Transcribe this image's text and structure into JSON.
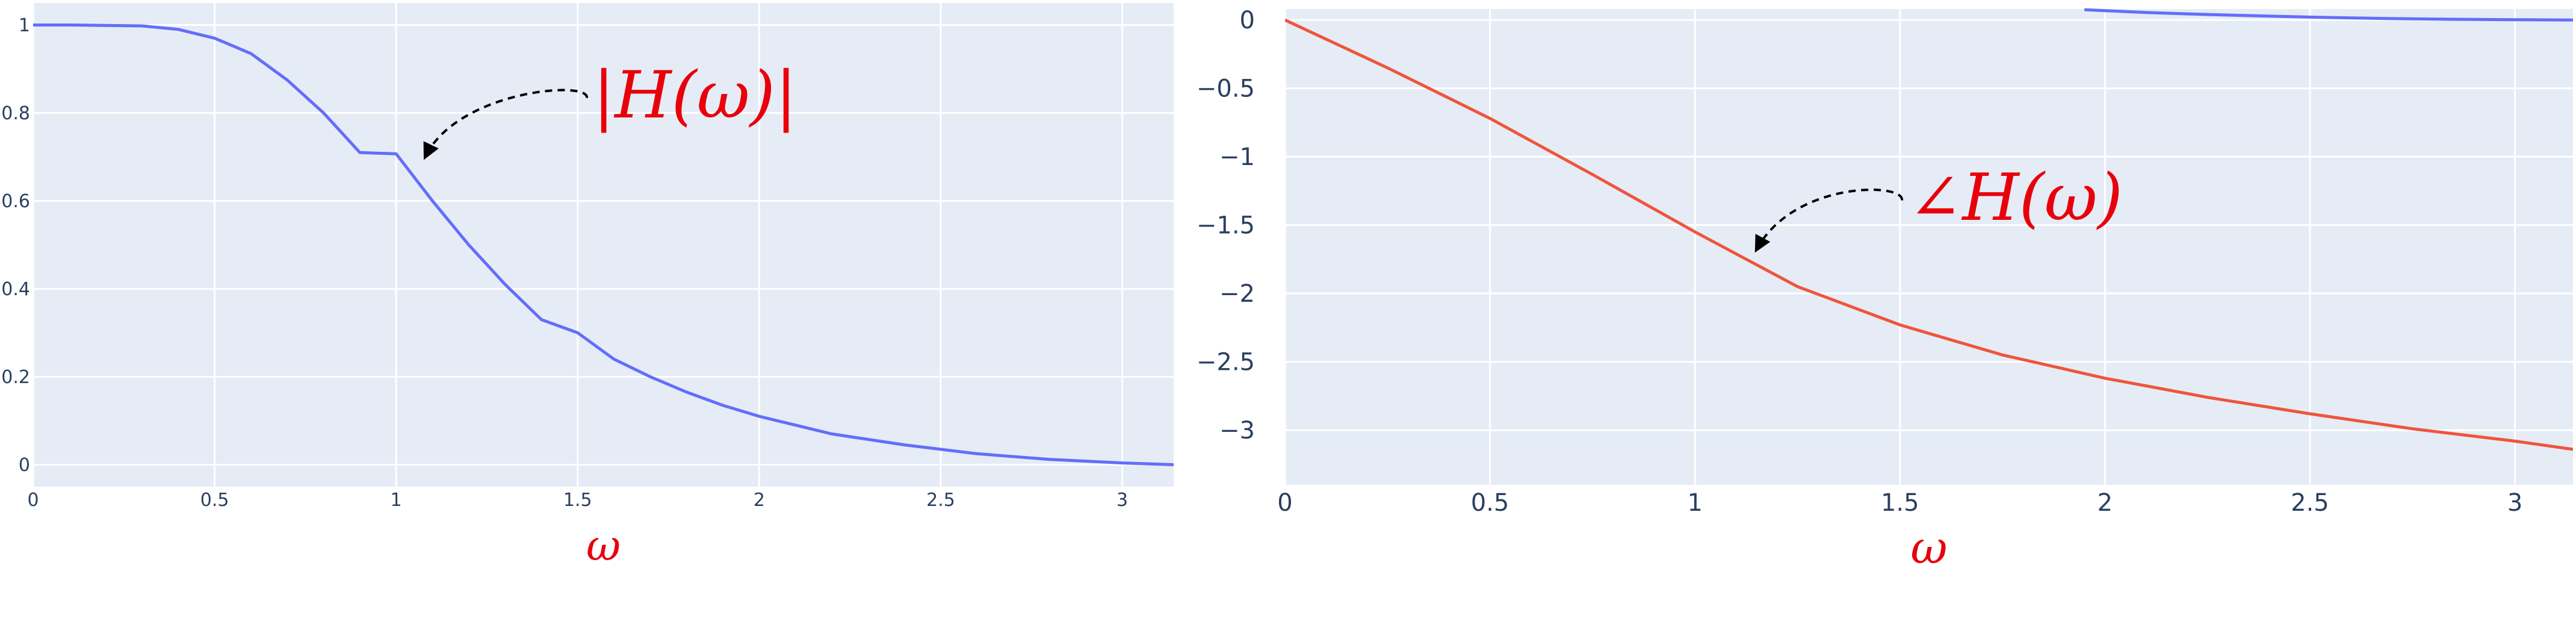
{
  "colors": {
    "plot_bg": "#e5ecf6",
    "grid": "#ffffff",
    "tick_text": "#2a3f5f",
    "magnitude_line": "#636efa",
    "phase_line": "#ef553b",
    "annotation": "#e8000b",
    "arrow": "#000000"
  },
  "chart_data": [
    {
      "type": "line",
      "title": "",
      "xlabel": "ω",
      "ylabel": "",
      "xlim": [
        0,
        3.14159
      ],
      "ylim": [
        -0.05,
        1.05
      ],
      "grid": true,
      "xticks": [
        0,
        0.5,
        1,
        1.5,
        2,
        2.5,
        3
      ],
      "xtick_labels": [
        "0",
        "0.5",
        "1",
        "1.5",
        "2",
        "2.5",
        "3"
      ],
      "yticks": [
        0,
        0.2,
        0.4,
        0.6,
        0.8,
        1
      ],
      "ytick_labels": [
        "0",
        "0.2",
        "0.4",
        "0.6",
        "0.8",
        "1"
      ],
      "series": [
        {
          "x": [
            0,
            0.1,
            0.2,
            0.3,
            0.4,
            0.5,
            0.6,
            0.7,
            0.8,
            0.9,
            1.0,
            1.1,
            1.2,
            1.3,
            1.4,
            1.5,
            1.6,
            1.7,
            1.8,
            1.9,
            2.0,
            2.2,
            2.4,
            2.6,
            2.8,
            3.0,
            3.14159
          ],
          "y": [
            1.0,
            1.0,
            0.999,
            0.998,
            0.99,
            0.97,
            0.935,
            0.875,
            0.8,
            0.71,
            0.707,
            0.6,
            0.5,
            0.41,
            0.33,
            0.3,
            0.24,
            0.2,
            0.165,
            0.135,
            0.11,
            0.07,
            0.045,
            0.025,
            0.012,
            0.004,
            0.0
          ],
          "color": "#636efa"
        }
      ],
      "annotation": {
        "text": "|H(ω)|",
        "arrow_to": [
          1.08,
          0.7
        ]
      }
    },
    {
      "type": "line",
      "title": "",
      "xlabel": "ω",
      "ylabel": "",
      "xlim": [
        0,
        3.14159
      ],
      "ylim": [
        -3.4,
        0.08
      ],
      "grid": true,
      "xticks": [
        0,
        0.5,
        1,
        1.5,
        2,
        2.5,
        3
      ],
      "xtick_labels": [
        "0",
        "0.5",
        "1",
        "1.5",
        "2",
        "2.5",
        "3"
      ],
      "yticks": [
        0,
        -0.5,
        -1,
        -1.5,
        -2,
        -2.5,
        -3
      ],
      "ytick_labels": [
        "0",
        "−0.5",
        "−1",
        "−1.5",
        "−2",
        "−2.5",
        "−3"
      ],
      "series": [
        {
          "x": [
            0,
            0.25,
            0.5,
            0.75,
            1.0,
            1.25,
            1.5,
            1.75,
            2.0,
            2.25,
            2.5,
            2.75,
            3.0,
            3.14159
          ],
          "y": [
            0,
            -0.35,
            -0.72,
            -1.13,
            -1.55,
            -1.95,
            -2.23,
            -2.45,
            -2.62,
            -2.76,
            -2.88,
            -2.99,
            -3.08,
            -3.14
          ],
          "color": "#ef553b"
        },
        {
          "x": [
            1.95,
            2.1,
            2.25,
            2.4,
            2.55,
            2.7,
            2.85,
            3.0,
            3.14159
          ],
          "y": [
            0.075,
            0.055,
            0.04,
            0.028,
            0.018,
            0.01,
            0.005,
            0.002,
            0.0
          ],
          "color": "#636efa"
        }
      ],
      "annotation": {
        "text": "∠H(ω)",
        "arrow_to": [
          1.15,
          -1.68
        ]
      }
    }
  ]
}
